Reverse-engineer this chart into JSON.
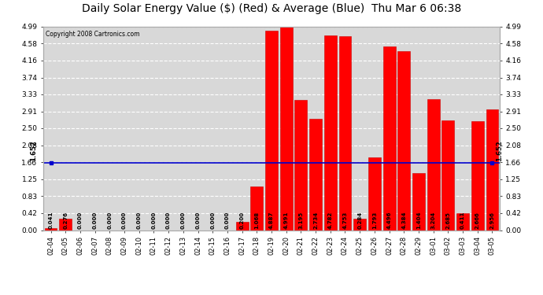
{
  "title": "Daily Solar Energy Value ($) (Red) & Average (Blue)  Thu Mar 6 06:38",
  "copyright": "Copyright 2008 Cartronics.com",
  "categories": [
    "02-04",
    "02-05",
    "02-06",
    "02-07",
    "02-08",
    "02-09",
    "02-10",
    "02-11",
    "02-12",
    "02-13",
    "02-14",
    "02-15",
    "02-16",
    "02-17",
    "02-18",
    "02-19",
    "02-20",
    "02-21",
    "02-22",
    "02-23",
    "02-24",
    "02-25",
    "02-26",
    "02-27",
    "02-28",
    "02-29",
    "03-01",
    "03-02",
    "03-03",
    "03-04",
    "03-05"
  ],
  "values": [
    0.041,
    0.276,
    0.0,
    0.0,
    0.0,
    0.0,
    0.0,
    0.0,
    0.0,
    0.0,
    0.0,
    0.0,
    0.0,
    0.2,
    1.068,
    4.887,
    4.991,
    3.195,
    2.734,
    4.782,
    4.753,
    0.284,
    1.793,
    4.496,
    4.384,
    1.404,
    3.204,
    2.685,
    0.411,
    2.666,
    2.956
  ],
  "average": 1.652,
  "ylim": [
    0.0,
    4.99
  ],
  "yticks": [
    0.0,
    0.42,
    0.83,
    1.25,
    1.66,
    2.08,
    2.5,
    2.91,
    3.33,
    3.74,
    4.16,
    4.58,
    4.99
  ],
  "bar_color": "#ff0000",
  "avg_color": "#0000cc",
  "bg_color": "#ffffff",
  "plot_bg_color": "#d8d8d8",
  "grid_color": "#ffffff",
  "bar_edge_color": "#cc0000",
  "title_fontsize": 10,
  "avg_label": "1.652"
}
